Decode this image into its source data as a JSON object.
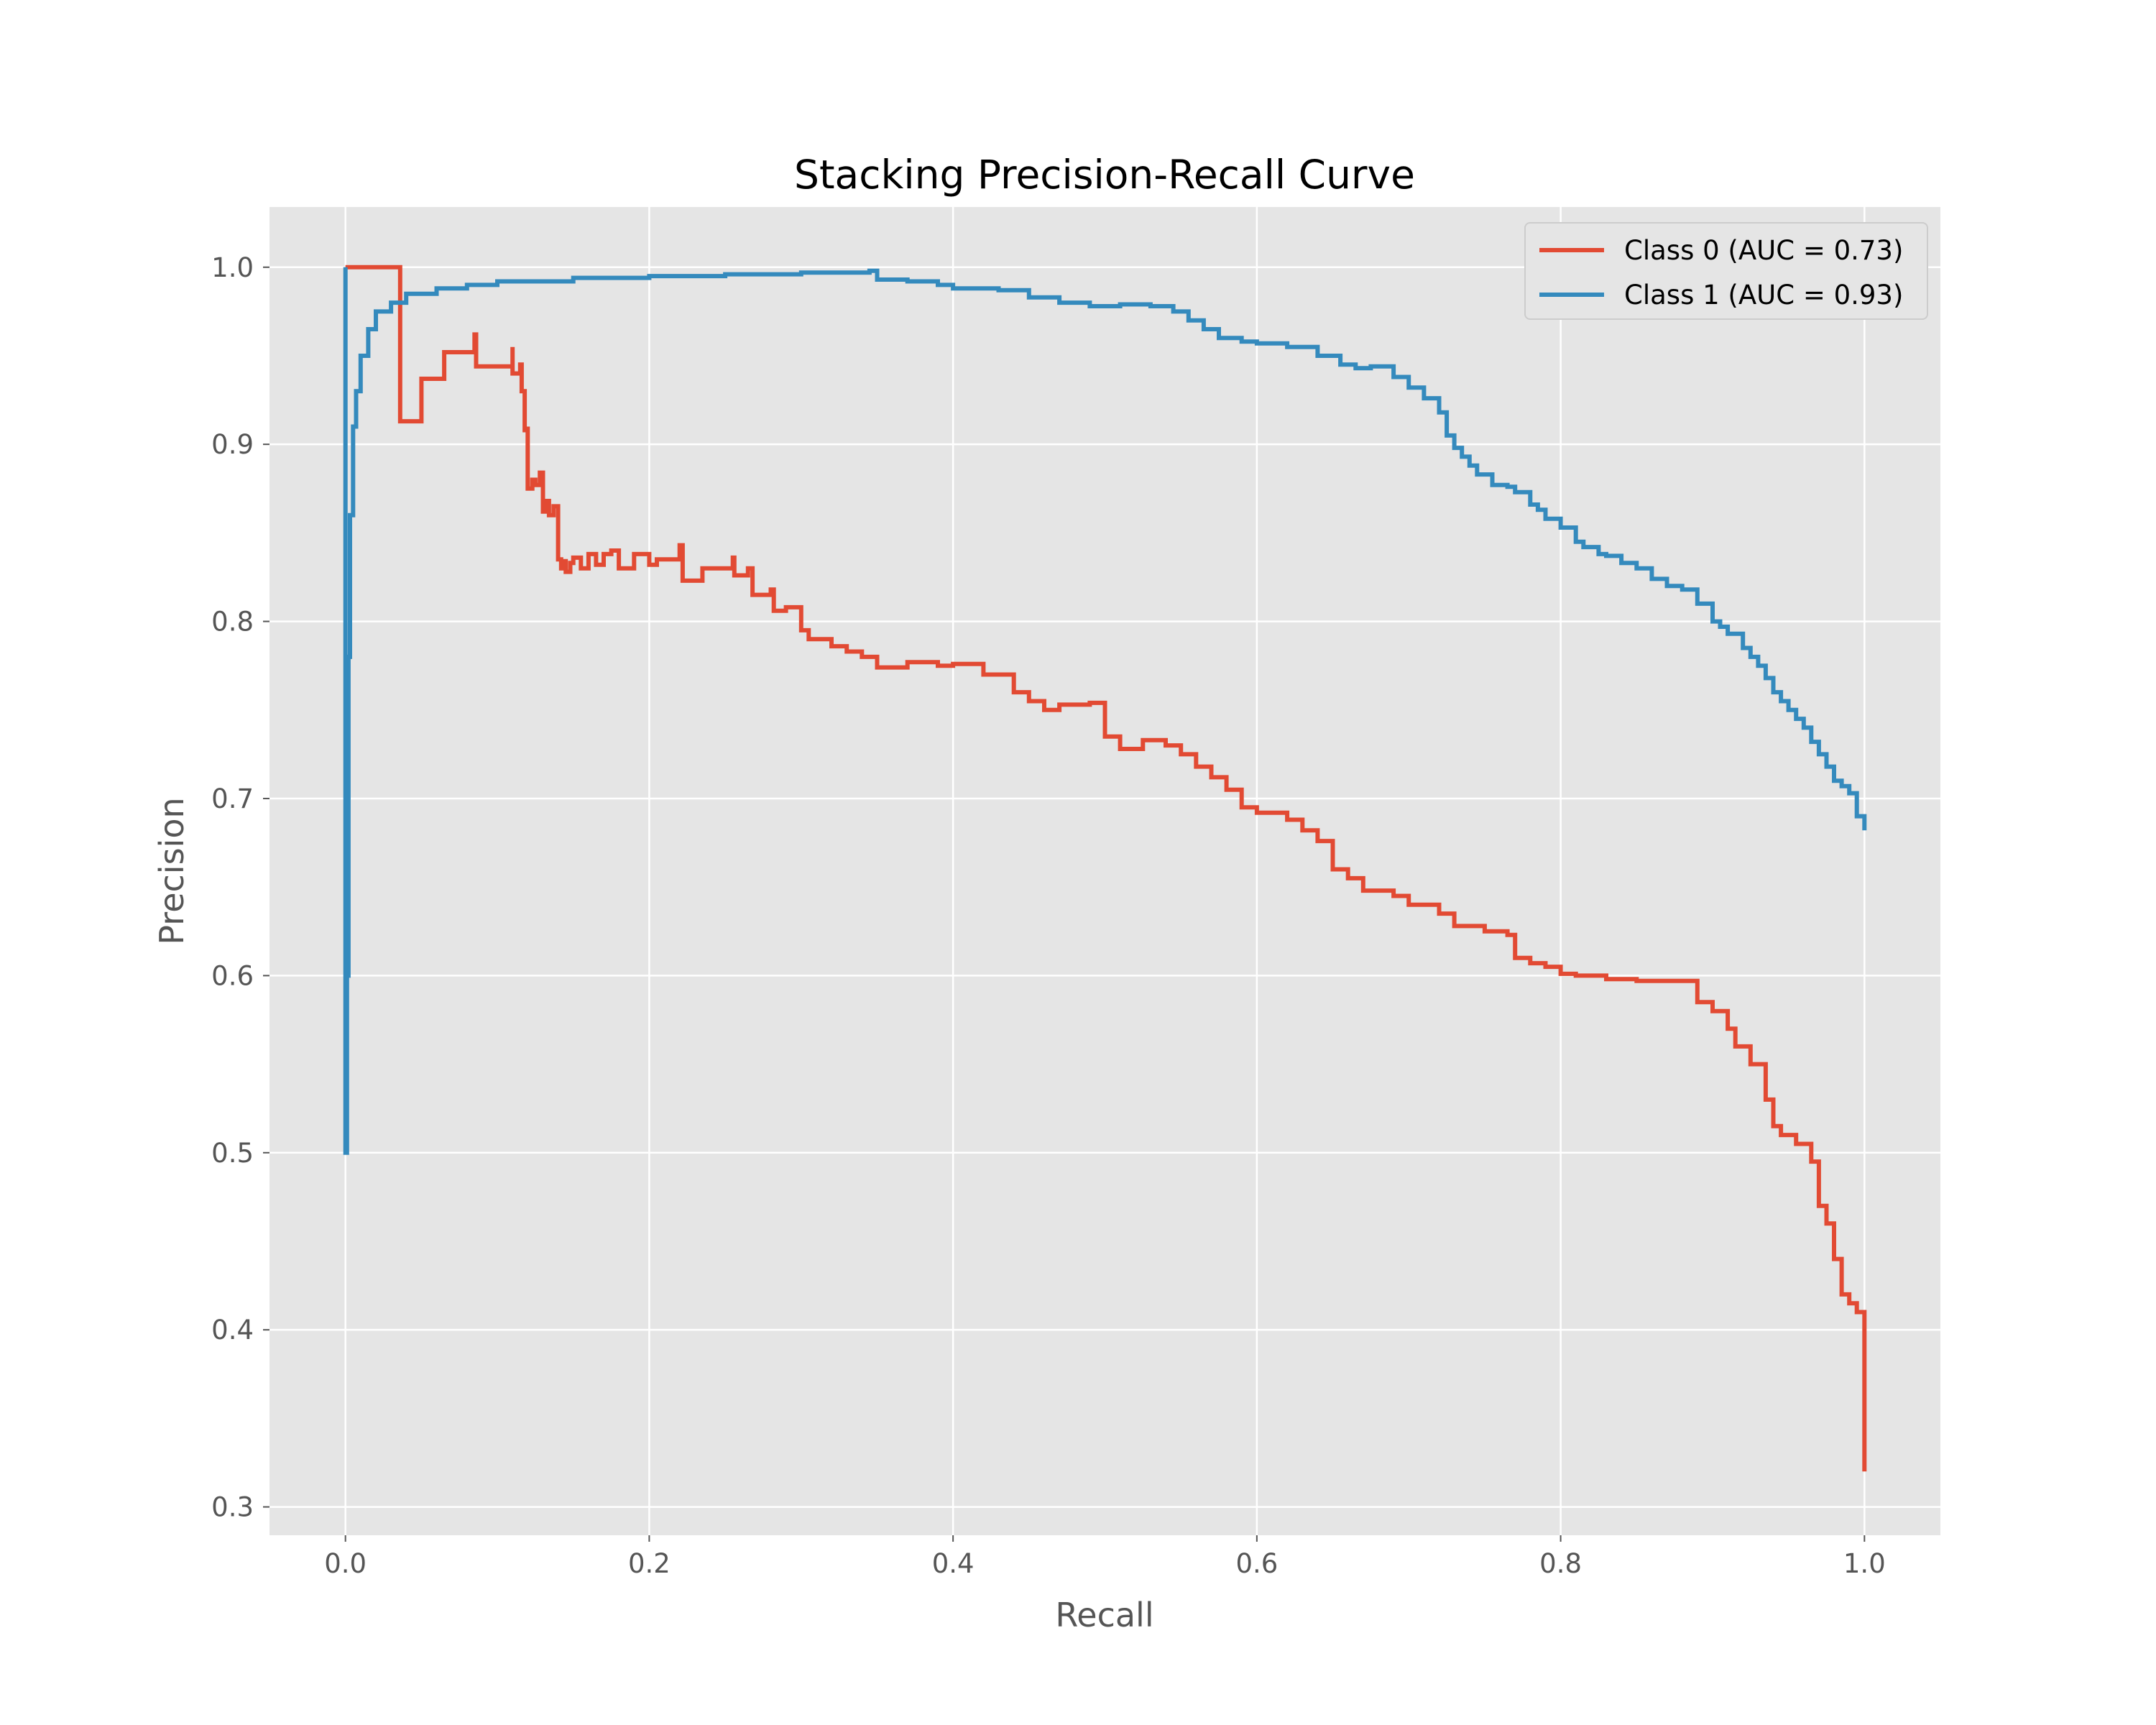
{
  "chart_data": {
    "type": "line",
    "title": "Stacking Precision-Recall Curve",
    "xlabel": "Recall",
    "ylabel": "Precision",
    "xlim": [
      -0.05,
      1.05
    ],
    "ylim": [
      0.284,
      1.034
    ],
    "xticks": [
      0.0,
      0.2,
      0.4,
      0.6,
      0.8,
      1.0
    ],
    "xtick_labels": [
      "0.0",
      "0.2",
      "0.4",
      "0.6",
      "0.8",
      "1.0"
    ],
    "yticks": [
      0.3,
      0.4,
      0.5,
      0.6,
      0.7,
      0.8,
      0.9,
      1.0
    ],
    "ytick_labels": [
      "0.3",
      "0.4",
      "0.5",
      "0.6",
      "0.7",
      "0.8",
      "0.9",
      "1.0"
    ],
    "grid": true,
    "background": "#e5e5e5",
    "grid_color": "#ffffff",
    "legend_position": "upper right",
    "series": [
      {
        "name": "Class 0 (AUC = 0.73)",
        "color": "#e24a33",
        "x": [
          0.0,
          0.036,
          0.036,
          0.05,
          0.065,
          0.085,
          0.086,
          0.11,
          0.11,
          0.115,
          0.116,
          0.118,
          0.118,
          0.12,
          0.12,
          0.123,
          0.125,
          0.128,
          0.13,
          0.132,
          0.134,
          0.137,
          0.14,
          0.142,
          0.144,
          0.145,
          0.148,
          0.15,
          0.155,
          0.16,
          0.165,
          0.17,
          0.175,
          0.18,
          0.19,
          0.2,
          0.205,
          0.22,
          0.222,
          0.235,
          0.255,
          0.256,
          0.265,
          0.268,
          0.28,
          0.282,
          0.29,
          0.3,
          0.305,
          0.32,
          0.33,
          0.34,
          0.35,
          0.37,
          0.39,
          0.4,
          0.42,
          0.44,
          0.45,
          0.46,
          0.47,
          0.49,
          0.5,
          0.5,
          0.51,
          0.525,
          0.54,
          0.55,
          0.56,
          0.57,
          0.58,
          0.59,
          0.6,
          0.62,
          0.63,
          0.64,
          0.65,
          0.66,
          0.67,
          0.69,
          0.7,
          0.72,
          0.73,
          0.75,
          0.765,
          0.77,
          0.78,
          0.79,
          0.8,
          0.81,
          0.83,
          0.85,
          0.87,
          0.89,
          0.9,
          0.91,
          0.915,
          0.925,
          0.935,
          0.94,
          0.945,
          0.955,
          0.965,
          0.97,
          0.975,
          0.98,
          0.985,
          0.99,
          0.995,
          1.0
        ],
        "y": [
          1.0,
          1.0,
          0.913,
          0.937,
          0.952,
          0.962,
          0.944,
          0.955,
          0.94,
          0.945,
          0.93,
          0.925,
          0.908,
          0.91,
          0.875,
          0.88,
          0.877,
          0.884,
          0.862,
          0.868,
          0.86,
          0.865,
          0.835,
          0.83,
          0.834,
          0.828,
          0.833,
          0.836,
          0.83,
          0.838,
          0.832,
          0.838,
          0.84,
          0.83,
          0.838,
          0.832,
          0.835,
          0.843,
          0.823,
          0.83,
          0.836,
          0.826,
          0.83,
          0.815,
          0.818,
          0.806,
          0.808,
          0.795,
          0.79,
          0.786,
          0.783,
          0.78,
          0.774,
          0.777,
          0.775,
          0.776,
          0.77,
          0.76,
          0.755,
          0.75,
          0.753,
          0.754,
          0.748,
          0.735,
          0.728,
          0.733,
          0.73,
          0.725,
          0.718,
          0.712,
          0.705,
          0.695,
          0.692,
          0.688,
          0.682,
          0.676,
          0.66,
          0.655,
          0.648,
          0.645,
          0.64,
          0.635,
          0.628,
          0.625,
          0.623,
          0.61,
          0.607,
          0.605,
          0.601,
          0.6,
          0.598,
          0.597,
          0.597,
          0.585,
          0.58,
          0.57,
          0.56,
          0.55,
          0.53,
          0.515,
          0.51,
          0.505,
          0.495,
          0.47,
          0.46,
          0.44,
          0.42,
          0.415,
          0.41,
          0.32
        ]
      },
      {
        "name": "Class 1 (AUC = 0.93)",
        "color": "#348abd",
        "x": [
          0.0,
          0.0,
          0.001,
          0.002,
          0.003,
          0.005,
          0.007,
          0.01,
          0.015,
          0.02,
          0.03,
          0.04,
          0.06,
          0.08,
          0.1,
          0.15,
          0.2,
          0.25,
          0.3,
          0.345,
          0.35,
          0.37,
          0.39,
          0.4,
          0.43,
          0.45,
          0.47,
          0.49,
          0.51,
          0.53,
          0.545,
          0.555,
          0.565,
          0.575,
          0.59,
          0.6,
          0.62,
          0.64,
          0.655,
          0.665,
          0.675,
          0.69,
          0.7,
          0.71,
          0.72,
          0.725,
          0.73,
          0.735,
          0.74,
          0.745,
          0.755,
          0.765,
          0.77,
          0.78,
          0.785,
          0.79,
          0.8,
          0.81,
          0.815,
          0.825,
          0.83,
          0.84,
          0.85,
          0.86,
          0.87,
          0.88,
          0.89,
          0.9,
          0.905,
          0.91,
          0.92,
          0.925,
          0.93,
          0.935,
          0.94,
          0.945,
          0.95,
          0.955,
          0.96,
          0.965,
          0.97,
          0.975,
          0.98,
          0.985,
          0.99,
          0.995,
          1.0
        ],
        "y": [
          1.0,
          0.5,
          0.6,
          0.78,
          0.86,
          0.91,
          0.93,
          0.95,
          0.965,
          0.975,
          0.98,
          0.985,
          0.988,
          0.99,
          0.992,
          0.994,
          0.995,
          0.996,
          0.997,
          0.998,
          0.993,
          0.992,
          0.99,
          0.988,
          0.987,
          0.983,
          0.98,
          0.978,
          0.979,
          0.978,
          0.975,
          0.97,
          0.965,
          0.96,
          0.958,
          0.957,
          0.955,
          0.95,
          0.945,
          0.943,
          0.944,
          0.938,
          0.932,
          0.926,
          0.918,
          0.905,
          0.898,
          0.893,
          0.888,
          0.883,
          0.877,
          0.876,
          0.873,
          0.866,
          0.863,
          0.858,
          0.853,
          0.845,
          0.842,
          0.838,
          0.837,
          0.833,
          0.83,
          0.824,
          0.82,
          0.818,
          0.81,
          0.8,
          0.797,
          0.793,
          0.785,
          0.78,
          0.775,
          0.768,
          0.76,
          0.755,
          0.75,
          0.745,
          0.74,
          0.732,
          0.725,
          0.718,
          0.71,
          0.707,
          0.703,
          0.69,
          0.682
        ]
      }
    ]
  }
}
